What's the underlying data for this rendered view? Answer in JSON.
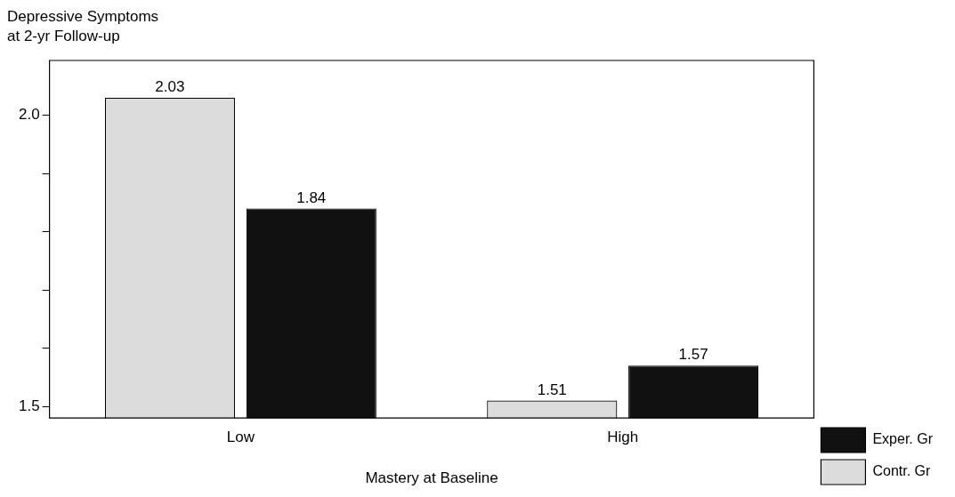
{
  "chart_data": {
    "type": "bar",
    "ylabel": "Depressive Symptoms\nat 2-yr Follow-up",
    "xlabel": "Mastery at Baseline",
    "categories": [
      "Low",
      "High"
    ],
    "series": [
      {
        "name": "Contr. Gr",
        "color": "#dcdcdc",
        "values": [
          2.03,
          1.51
        ]
      },
      {
        "name": "Exper. Gr",
        "color": "#111111",
        "values": [
          1.84,
          1.57
        ]
      }
    ],
    "ylim": [
      1.48,
      2.094
    ],
    "yticks": [
      1.5,
      {
        "value": 1.6,
        "label": null
      },
      {
        "value": 1.7,
        "label": null
      },
      {
        "value": 1.8,
        "label": null
      },
      {
        "value": 1.9,
        "label": null
      },
      {
        "value": 2.0,
        "label": "2.0"
      }
    ],
    "data_labels": true,
    "grid": false,
    "legend": "bottom right"
  }
}
